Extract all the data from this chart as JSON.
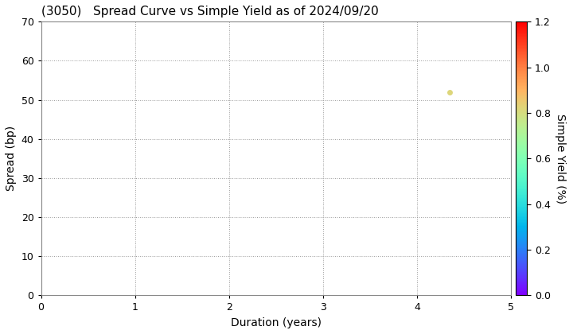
{
  "title": "(3050)   Spread Curve vs Simple Yield as of 2024/09/20",
  "xlabel": "Duration (years)",
  "ylabel": "Spread (bp)",
  "colorbar_label": "Simple Yield (%)",
  "xlim": [
    0,
    5
  ],
  "ylim": [
    0,
    70
  ],
  "xticks": [
    0,
    1,
    2,
    3,
    4,
    5
  ],
  "yticks": [
    0,
    10,
    20,
    30,
    40,
    50,
    60,
    70
  ],
  "colorbar_ticks": [
    0.0,
    0.2,
    0.4,
    0.6,
    0.8,
    1.0,
    1.2
  ],
  "colorbar_range": [
    0.0,
    1.2
  ],
  "data_points": [
    {
      "duration": 4.35,
      "spread": 52,
      "simple_yield": 0.82
    }
  ],
  "marker_size": 25,
  "background_color": "#ffffff",
  "grid_color": "#999999",
  "colormap": "rainbow",
  "title_fontsize": 11,
  "axis_fontsize": 10,
  "tick_fontsize": 9
}
